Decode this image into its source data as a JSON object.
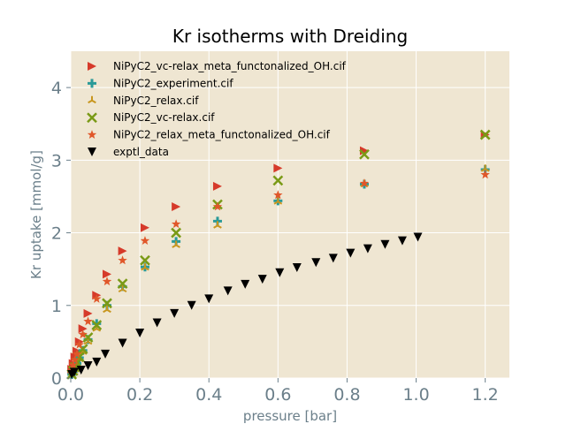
{
  "chart_data": {
    "type": "scatter",
    "title": "Kr isotherms with Dreiding",
    "xlabel": "pressure [bar]",
    "ylabel": "Kr uptake [mmol/g]",
    "xlim": [
      0,
      1.27
    ],
    "ylim": [
      0,
      4.5
    ],
    "xticks": [
      0.0,
      0.2,
      0.4,
      0.6,
      0.8,
      1.0,
      1.2
    ],
    "xtick_labels": [
      "0.0",
      "0.2",
      "0.4",
      "0.6",
      "0.8",
      "1.0",
      "1.2"
    ],
    "yticks": [
      0,
      1,
      2,
      3,
      4
    ],
    "ytick_labels": [
      "0",
      "1",
      "2",
      "3",
      "4"
    ],
    "grid": true,
    "legend_position": "top-left",
    "background_color": "#efe6d2",
    "series": [
      {
        "name": "NiPyC2_vc-relax_meta_functonalized_OH.cif",
        "marker": "triangle-right",
        "color": "#d63a2a",
        "x": [
          0.003,
          0.007,
          0.012,
          0.018,
          0.025,
          0.035,
          0.05,
          0.075,
          0.105,
          0.15,
          0.215,
          0.305,
          0.425,
          0.6,
          0.85,
          1.2
        ],
        "y": [
          0.12,
          0.2,
          0.29,
          0.37,
          0.5,
          0.68,
          0.89,
          1.14,
          1.43,
          1.75,
          2.07,
          2.36,
          2.64,
          2.89,
          3.13,
          3.35
        ]
      },
      {
        "name": "NiPyC2_experiment.cif",
        "marker": "plus",
        "color": "#2a9a98",
        "x": [
          0.003,
          0.007,
          0.012,
          0.018,
          0.025,
          0.035,
          0.05,
          0.075,
          0.105,
          0.15,
          0.215,
          0.305,
          0.425,
          0.6,
          0.85,
          1.2
        ],
        "y": [
          0.05,
          0.09,
          0.14,
          0.2,
          0.28,
          0.38,
          0.53,
          0.75,
          1.0,
          1.26,
          1.53,
          1.88,
          2.16,
          2.44,
          2.67,
          2.87
        ]
      },
      {
        "name": "NiPyC2_relax.cif",
        "marker": "tri-up",
        "color": "#c8961e",
        "x": [
          0.003,
          0.007,
          0.012,
          0.018,
          0.025,
          0.035,
          0.05,
          0.075,
          0.105,
          0.15,
          0.215,
          0.305,
          0.425,
          0.6,
          0.85,
          1.2
        ],
        "y": [
          0.04,
          0.08,
          0.12,
          0.18,
          0.26,
          0.36,
          0.5,
          0.68,
          0.94,
          1.22,
          1.52,
          1.83,
          2.1,
          2.43,
          2.67,
          2.88
        ]
      },
      {
        "name": "NiPyC2_vc-relax.cif",
        "marker": "x",
        "color": "#7a9a16",
        "x": [
          0.003,
          0.007,
          0.012,
          0.018,
          0.025,
          0.035,
          0.05,
          0.075,
          0.105,
          0.15,
          0.215,
          0.305,
          0.425,
          0.6,
          0.85,
          1.2
        ],
        "y": [
          0.05,
          0.1,
          0.15,
          0.21,
          0.29,
          0.4,
          0.56,
          0.73,
          1.03,
          1.3,
          1.62,
          2.0,
          2.39,
          2.72,
          3.08,
          3.35
        ]
      },
      {
        "name": "NiPyC2_relax_meta_functonalized_OH.cif",
        "marker": "star",
        "color": "#e0572a",
        "x": [
          0.003,
          0.007,
          0.012,
          0.018,
          0.025,
          0.035,
          0.05,
          0.075,
          0.105,
          0.15,
          0.215,
          0.305,
          0.425,
          0.6,
          0.85,
          1.2
        ],
        "y": [
          0.1,
          0.18,
          0.25,
          0.33,
          0.46,
          0.6,
          0.78,
          1.09,
          1.33,
          1.62,
          1.89,
          2.12,
          2.36,
          2.52,
          2.68,
          2.8
        ]
      },
      {
        "name": "exptl_data",
        "marker": "triangle-down",
        "color": "#000000",
        "x": [
          0.003,
          0.01,
          0.03,
          0.05,
          0.075,
          0.1,
          0.15,
          0.2,
          0.25,
          0.3,
          0.35,
          0.4,
          0.455,
          0.505,
          0.555,
          0.605,
          0.655,
          0.71,
          0.76,
          0.81,
          0.86,
          0.91,
          0.96,
          1.005
        ],
        "y": [
          0.05,
          0.08,
          0.11,
          0.17,
          0.22,
          0.33,
          0.48,
          0.62,
          0.76,
          0.89,
          1.0,
          1.09,
          1.2,
          1.29,
          1.36,
          1.45,
          1.52,
          1.59,
          1.65,
          1.72,
          1.78,
          1.84,
          1.89,
          1.94
        ]
      }
    ]
  }
}
